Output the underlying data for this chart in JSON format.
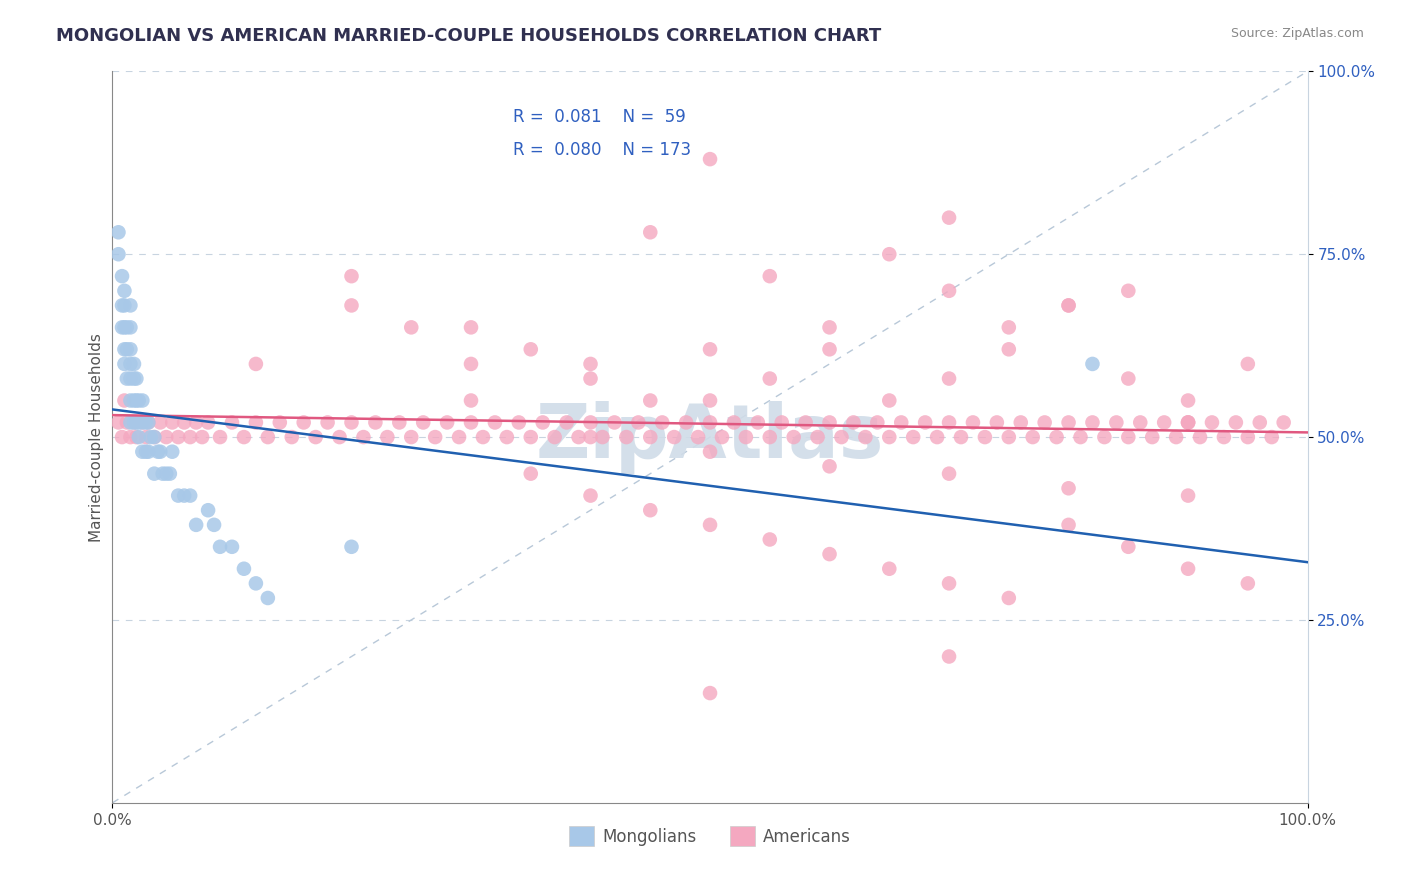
{
  "title": "MONGOLIAN VS AMERICAN MARRIED-COUPLE HOUSEHOLDS CORRELATION CHART",
  "source": "Source: ZipAtlas.com",
  "ylabel": "Married-couple Households",
  "xlim": [
    0,
    1
  ],
  "ylim": [
    0,
    1
  ],
  "mongolian_color": "#a8c8e8",
  "american_color": "#f4a8c0",
  "mongolian_line_color": "#2060b0",
  "american_line_color": "#e05880",
  "diagonal_color": "#b8c8d8",
  "background_color": "#ffffff",
  "grid_color": "#c8d4e0",
  "legend_text_color": "#3060c0",
  "title_color": "#303050",
  "axis_color": "#888888",
  "watermark_color": "#d0dce8",
  "ytick_color": "#3060c0",
  "xtick_color": "#555555",
  "mongolian_x": [
    0.005,
    0.005,
    0.008,
    0.008,
    0.008,
    0.01,
    0.01,
    0.01,
    0.01,
    0.01,
    0.012,
    0.012,
    0.012,
    0.015,
    0.015,
    0.015,
    0.015,
    0.015,
    0.015,
    0.015,
    0.018,
    0.018,
    0.018,
    0.018,
    0.02,
    0.02,
    0.02,
    0.022,
    0.022,
    0.022,
    0.025,
    0.025,
    0.025,
    0.028,
    0.028,
    0.03,
    0.03,
    0.032,
    0.035,
    0.035,
    0.038,
    0.04,
    0.042,
    0.045,
    0.048,
    0.05,
    0.055,
    0.06,
    0.065,
    0.07,
    0.08,
    0.085,
    0.09,
    0.1,
    0.11,
    0.12,
    0.13,
    0.2,
    0.82
  ],
  "mongolian_y": [
    0.78,
    0.75,
    0.72,
    0.68,
    0.65,
    0.7,
    0.68,
    0.65,
    0.62,
    0.6,
    0.65,
    0.62,
    0.58,
    0.68,
    0.65,
    0.62,
    0.6,
    0.58,
    0.55,
    0.52,
    0.6,
    0.58,
    0.55,
    0.52,
    0.58,
    0.55,
    0.52,
    0.55,
    0.52,
    0.5,
    0.55,
    0.52,
    0.48,
    0.52,
    0.48,
    0.52,
    0.48,
    0.5,
    0.5,
    0.45,
    0.48,
    0.48,
    0.45,
    0.45,
    0.45,
    0.48,
    0.42,
    0.42,
    0.42,
    0.38,
    0.4,
    0.38,
    0.35,
    0.35,
    0.32,
    0.3,
    0.28,
    0.35,
    0.6
  ],
  "american_x": [
    0.005,
    0.008,
    0.01,
    0.012,
    0.015,
    0.018,
    0.02,
    0.025,
    0.028,
    0.03,
    0.035,
    0.04,
    0.045,
    0.05,
    0.055,
    0.06,
    0.065,
    0.07,
    0.075,
    0.08,
    0.09,
    0.1,
    0.11,
    0.12,
    0.13,
    0.14,
    0.15,
    0.16,
    0.17,
    0.18,
    0.19,
    0.2,
    0.21,
    0.22,
    0.23,
    0.24,
    0.25,
    0.26,
    0.27,
    0.28,
    0.29,
    0.3,
    0.31,
    0.32,
    0.33,
    0.34,
    0.35,
    0.36,
    0.37,
    0.38,
    0.39,
    0.4,
    0.41,
    0.42,
    0.43,
    0.44,
    0.45,
    0.46,
    0.47,
    0.48,
    0.49,
    0.5,
    0.51,
    0.52,
    0.53,
    0.54,
    0.55,
    0.56,
    0.57,
    0.58,
    0.59,
    0.6,
    0.61,
    0.62,
    0.63,
    0.64,
    0.65,
    0.66,
    0.67,
    0.68,
    0.69,
    0.7,
    0.71,
    0.72,
    0.73,
    0.74,
    0.75,
    0.76,
    0.77,
    0.78,
    0.79,
    0.8,
    0.81,
    0.82,
    0.83,
    0.84,
    0.85,
    0.86,
    0.87,
    0.88,
    0.89,
    0.9,
    0.91,
    0.92,
    0.93,
    0.94,
    0.95,
    0.96,
    0.97,
    0.98,
    0.12,
    0.2,
    0.25,
    0.3,
    0.35,
    0.4,
    0.45,
    0.5,
    0.55,
    0.6,
    0.65,
    0.7,
    0.75,
    0.8,
    0.85,
    0.9,
    0.35,
    0.4,
    0.45,
    0.5,
    0.55,
    0.6,
    0.65,
    0.7,
    0.75,
    0.8,
    0.85,
    0.9,
    0.95,
    0.2,
    0.3,
    0.4,
    0.5,
    0.6,
    0.7,
    0.8,
    0.9,
    0.45,
    0.55,
    0.65,
    0.75,
    0.85,
    0.95,
    0.3,
    0.5,
    0.7,
    0.9,
    0.4,
    0.6,
    0.8,
    0.5,
    0.7,
    0.9,
    0.5,
    0.7
  ],
  "american_y": [
    0.52,
    0.5,
    0.55,
    0.52,
    0.5,
    0.52,
    0.5,
    0.52,
    0.5,
    0.52,
    0.5,
    0.52,
    0.5,
    0.52,
    0.5,
    0.52,
    0.5,
    0.52,
    0.5,
    0.52,
    0.5,
    0.52,
    0.5,
    0.52,
    0.5,
    0.52,
    0.5,
    0.52,
    0.5,
    0.52,
    0.5,
    0.52,
    0.5,
    0.52,
    0.5,
    0.52,
    0.5,
    0.52,
    0.5,
    0.52,
    0.5,
    0.52,
    0.5,
    0.52,
    0.5,
    0.52,
    0.5,
    0.52,
    0.5,
    0.52,
    0.5,
    0.52,
    0.5,
    0.52,
    0.5,
    0.52,
    0.5,
    0.52,
    0.5,
    0.52,
    0.5,
    0.52,
    0.5,
    0.52,
    0.5,
    0.52,
    0.5,
    0.52,
    0.5,
    0.52,
    0.5,
    0.52,
    0.5,
    0.52,
    0.5,
    0.52,
    0.5,
    0.52,
    0.5,
    0.52,
    0.5,
    0.52,
    0.5,
    0.52,
    0.5,
    0.52,
    0.5,
    0.52,
    0.5,
    0.52,
    0.5,
    0.52,
    0.5,
    0.52,
    0.5,
    0.52,
    0.5,
    0.52,
    0.5,
    0.52,
    0.5,
    0.52,
    0.5,
    0.52,
    0.5,
    0.52,
    0.5,
    0.52,
    0.5,
    0.52,
    0.6,
    0.68,
    0.65,
    0.6,
    0.62,
    0.58,
    0.55,
    0.62,
    0.58,
    0.65,
    0.55,
    0.7,
    0.62,
    0.68,
    0.58,
    0.55,
    0.45,
    0.42,
    0.4,
    0.38,
    0.36,
    0.34,
    0.32,
    0.3,
    0.28,
    0.38,
    0.35,
    0.32,
    0.3,
    0.72,
    0.65,
    0.6,
    0.55,
    0.62,
    0.58,
    0.68,
    0.52,
    0.78,
    0.72,
    0.75,
    0.65,
    0.7,
    0.6,
    0.55,
    0.48,
    0.45,
    0.42,
    0.5,
    0.46,
    0.43,
    0.88,
    0.8,
    0.52,
    0.15,
    0.2
  ]
}
